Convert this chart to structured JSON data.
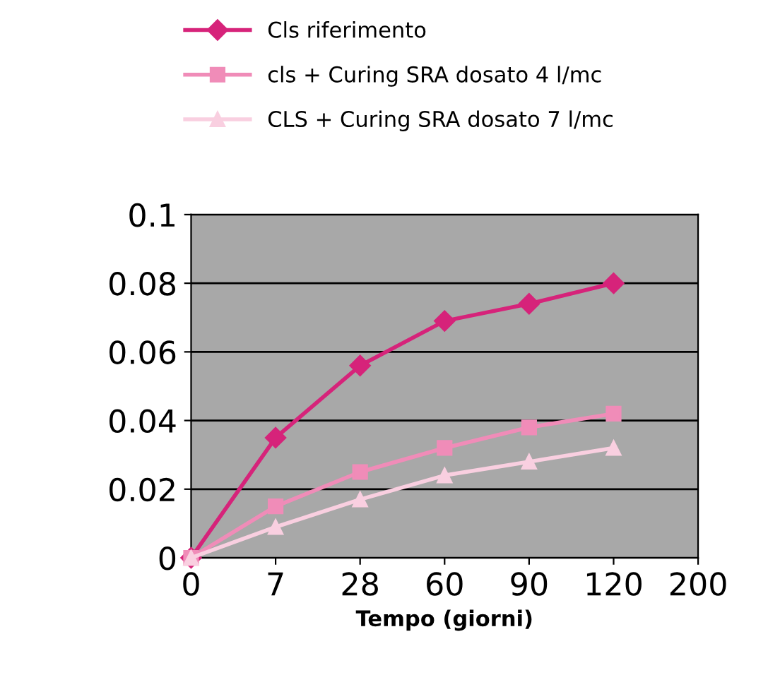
{
  "chart_data": {
    "type": "line",
    "xlabel": "Tempo (giorni)",
    "categories": [
      "0",
      "7",
      "28",
      "60",
      "90",
      "120",
      "200"
    ],
    "series": [
      {
        "name": "Cls riferimento",
        "color": "#d6237a",
        "marker": "diamond",
        "values": [
          0,
          0.035,
          0.056,
          0.069,
          0.074,
          0.08,
          null
        ]
      },
      {
        "name": "cls + Curing SRA dosato 4 l/mc",
        "color": "#f08cb8",
        "marker": "square",
        "values": [
          0,
          0.015,
          0.025,
          0.032,
          0.038,
          0.042,
          null
        ]
      },
      {
        "name": "CLS + Curing SRA dosato 7 l/mc",
        "color": "#f9cfe0",
        "marker": "triangle",
        "values": [
          0,
          0.009,
          0.017,
          0.024,
          0.028,
          0.032,
          null
        ]
      }
    ],
    "ylim": [
      0,
      0.1
    ],
    "yticks": [
      0,
      0.02,
      0.04,
      0.06,
      0.08,
      0.1
    ],
    "grid": "y",
    "legend": "top",
    "line_style": "solid"
  }
}
